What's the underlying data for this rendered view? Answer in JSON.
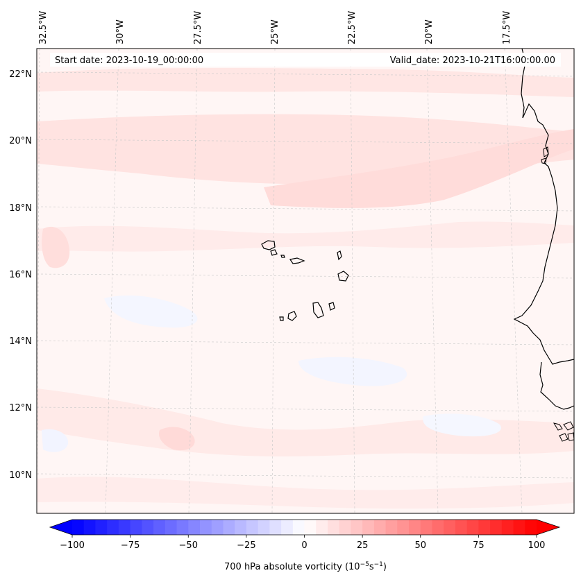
{
  "map": {
    "start_date_label": "Start date: 2023-10-19_00:00:00",
    "valid_date_label": "Valid_date: 2023-10-21T16:00:00.00",
    "lon_labels": [
      "32.5°W",
      "30°W",
      "27.5°W",
      "25°W",
      "22.5°W",
      "20°W",
      "17.5°W"
    ],
    "lat_labels": [
      "22°N",
      "20°N",
      "18°N",
      "16°N",
      "14°N",
      "12°N",
      "10°N"
    ]
  },
  "colorbar": {
    "title": "700 hPa absolute vorticity (10",
    "exp1": "−5",
    "mid": "s",
    "exp2": "−1",
    "close": ")",
    "ticks": [
      "−100",
      "−75",
      "−50",
      "−25",
      "0",
      "25",
      "50",
      "75",
      "100"
    ],
    "min_color": "#0000ff",
    "max_color": "#ff0000"
  }
}
